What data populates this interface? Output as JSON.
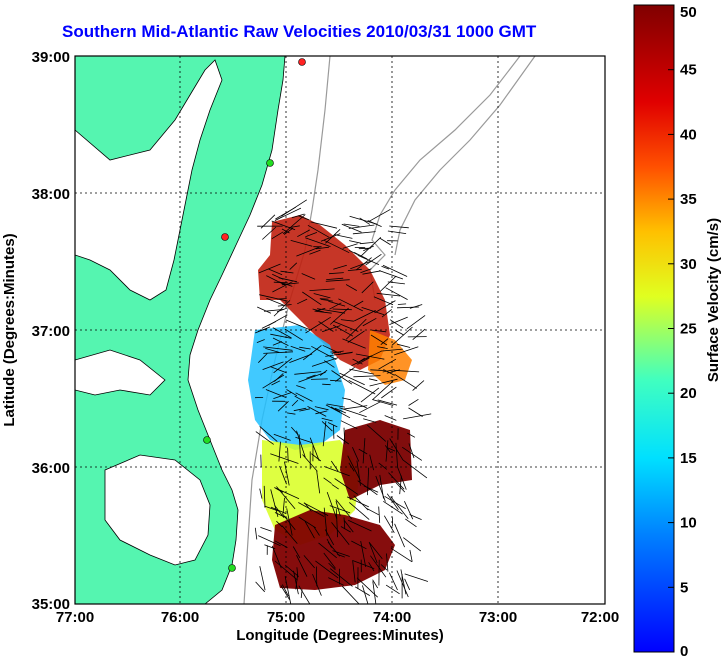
{
  "title": "Southern Mid-Atlantic Raw Velocities 2010/03/31 1000 GMT",
  "xlabel": "Longitude (Degrees:Minutes)",
  "ylabel": "Latitude (Degrees:Minutes)",
  "colorbar": {
    "label": "Surface Velocity (cm/s)",
    "ticks": [
      "0",
      "5",
      "10",
      "15",
      "20",
      "25",
      "30",
      "35",
      "40",
      "45",
      "50"
    ],
    "range": [
      0,
      50
    ]
  },
  "x_ticks": [
    "77:00",
    "76:00",
    "75:00",
    "74:00",
    "73:00",
    "72:00"
  ],
  "y_ticks": [
    "39:00",
    "38:00",
    "37:00",
    "36:00",
    "35:00"
  ],
  "colors": {
    "land": "#55f5b0",
    "water": "#ffffff",
    "title": "#0000ff",
    "grid": "#000000",
    "bathymetry": "#9a9a9a",
    "station_green": "#22dd22",
    "station_red": "#ff2222"
  }
}
